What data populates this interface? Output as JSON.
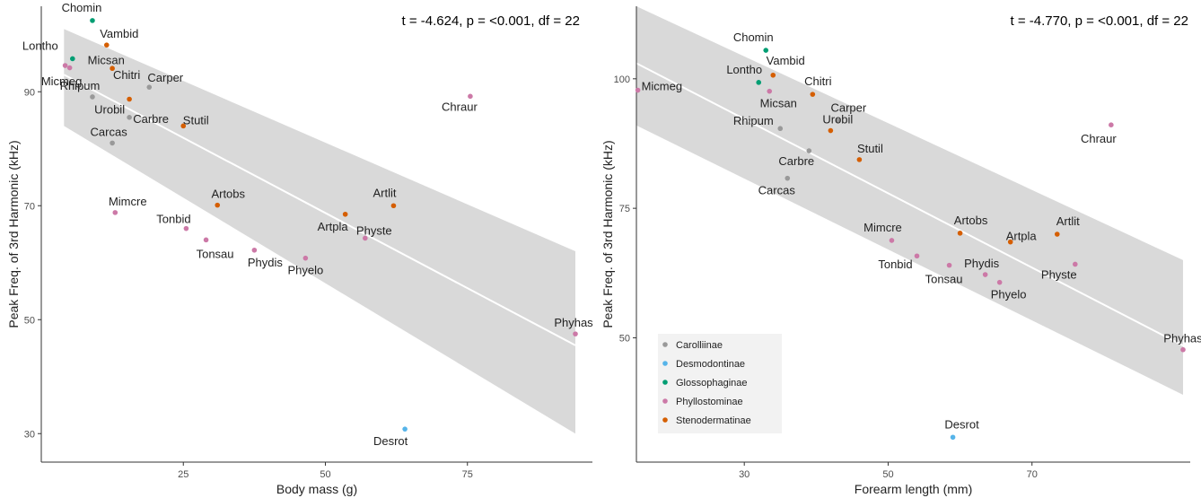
{
  "chart_data": [
    {
      "type": "scatter",
      "annotation": "t = -4.624, p = <0.001, df = 22",
      "xlabel": "Body mass (g)",
      "ylabel": "Peak Freq. of 3rd Harmonic (kHz)",
      "xlim": [
        0,
        97
      ],
      "ylim": [
        25,
        105
      ],
      "xticks": [
        25,
        50,
        75
      ],
      "yticks": [
        30,
        50,
        70,
        90
      ],
      "grid": false,
      "regression": {
        "x0": 4,
        "y0": 93,
        "x1": 94,
        "y1": 45.5,
        "band_lower": [
          84,
          30
        ],
        "band_upper": [
          101,
          62
        ]
      },
      "points": [
        {
          "label": "Chomin",
          "group": "Glossophaginae",
          "x": 9.0,
          "y": 102.5
        },
        {
          "label": "Lontho",
          "group": "Glossophaginae",
          "x": 5.5,
          "y": 95.8
        },
        {
          "label": "Vambid",
          "group": "Stenodermatinae",
          "x": 11.5,
          "y": 98.2
        },
        {
          "label": "Micsan",
          "group": "Phyllostominae",
          "x": 5.0,
          "y": 94.2
        },
        {
          "label": "Micmeg",
          "group": "Phyllostominae",
          "x": 4.2,
          "y": 94.6
        },
        {
          "label": "Chitri",
          "group": "Stenodermatinae",
          "x": 12.5,
          "y": 94.1
        },
        {
          "label": "Carper",
          "group": "Carolliinae",
          "x": 19.0,
          "y": 90.8
        },
        {
          "label": "Rhipum",
          "group": "Carolliinae",
          "x": 9.0,
          "y": 89.1
        },
        {
          "label": "Urobil",
          "group": "Stenodermatinae",
          "x": 15.5,
          "y": 88.7
        },
        {
          "label": "Carbre",
          "group": "Carolliinae",
          "x": 15.5,
          "y": 85.5
        },
        {
          "label": "Stutil",
          "group": "Stenodermatinae",
          "x": 25.0,
          "y": 84.0
        },
        {
          "label": "Carcas",
          "group": "Carolliinae",
          "x": 12.5,
          "y": 81.0
        },
        {
          "label": "Chraur",
          "group": "Phyllostominae",
          "x": 75.5,
          "y": 89.2
        },
        {
          "label": "Mimcre",
          "group": "Phyllostominae",
          "x": 13.0,
          "y": 68.8
        },
        {
          "label": "Artobs",
          "group": "Stenodermatinae",
          "x": 31.0,
          "y": 70.1
        },
        {
          "label": "Tonbid",
          "group": "Phyllostominae",
          "x": 25.5,
          "y": 66.0
        },
        {
          "label": "Tonsau",
          "group": "Phyllostominae",
          "x": 29.0,
          "y": 64.0
        },
        {
          "label": "Phydis",
          "group": "Phyllostominae",
          "x": 37.5,
          "y": 62.2
        },
        {
          "label": "Phyelo",
          "group": "Phyllostominae",
          "x": 46.5,
          "y": 60.8
        },
        {
          "label": "Artpla",
          "group": "Stenodermatinae",
          "x": 53.5,
          "y": 68.5
        },
        {
          "label": "Artlit",
          "group": "Stenodermatinae",
          "x": 62.0,
          "y": 70.0
        },
        {
          "label": "Physte",
          "group": "Phyllostominae",
          "x": 57.0,
          "y": 64.3
        },
        {
          "label": "Phyhas",
          "group": "Phyllostominae",
          "x": 94.0,
          "y": 47.5
        },
        {
          "label": "Desrot",
          "group": "Desmodontinae",
          "x": 64.0,
          "y": 30.8
        }
      ]
    },
    {
      "type": "scatter",
      "annotation": "t = -4.770, p = <0.001, df = 22",
      "xlabel": "Forearm length (mm)",
      "ylabel": "Peak Freq. of 3rd Harmonic (kHz)",
      "xlim": [
        15,
        92
      ],
      "ylim": [
        26,
        114
      ],
      "xticks": [
        30,
        50,
        70
      ],
      "yticks": [
        50,
        75,
        100
      ],
      "grid": false,
      "legend_position": "bottom-left",
      "legend": [
        {
          "group": "Carolliinae",
          "label": "Carolliinae",
          "color": "#999999"
        },
        {
          "group": "Desmodontinae",
          "label": "Desmodontinae",
          "color": "#56B4E9"
        },
        {
          "group": "Glossophaginae",
          "label": "Glossophaginae",
          "color": "#009E73"
        },
        {
          "group": "Phyllostominae",
          "label": "Phyllostominae",
          "color": "#CC79A7"
        },
        {
          "group": "Stenodermatinae",
          "label": "Stenodermatinae",
          "color": "#D55E00"
        }
      ],
      "regression": {
        "x0": 15,
        "y0": 103.0,
        "x1": 91,
        "y1": 48.5,
        "band_lower": [
          91,
          39
        ],
        "band_upper": [
          114,
          65
        ]
      },
      "points": [
        {
          "label": "Chomin",
          "group": "Glossophaginae",
          "x": 33.0,
          "y": 105.5
        },
        {
          "label": "Vambid",
          "group": "Stenodermatinae",
          "x": 34.0,
          "y": 100.7
        },
        {
          "label": "Lontho",
          "group": "Glossophaginae",
          "x": 32.0,
          "y": 99.3
        },
        {
          "label": "Micmeg",
          "group": "Phyllostominae",
          "x": 15.2,
          "y": 97.8
        },
        {
          "label": "Micsan",
          "group": "Phyllostominae",
          "x": 33.5,
          "y": 97.6
        },
        {
          "label": "Chitri",
          "group": "Stenodermatinae",
          "x": 39.5,
          "y": 97.0
        },
        {
          "label": "Carper",
          "group": "Carolliinae",
          "x": 43.0,
          "y": 91.9
        },
        {
          "label": "Rhipum",
          "group": "Carolliinae",
          "x": 35.0,
          "y": 90.4
        },
        {
          "label": "Urobil",
          "group": "Stenodermatinae",
          "x": 42.0,
          "y": 90.0
        },
        {
          "label": "Carbre",
          "group": "Carolliinae",
          "x": 39.0,
          "y": 86.1
        },
        {
          "label": "Stutil",
          "group": "Stenodermatinae",
          "x": 46.0,
          "y": 84.4
        },
        {
          "label": "Carcas",
          "group": "Carolliinae",
          "x": 36.0,
          "y": 80.8
        },
        {
          "label": "Chraur",
          "group": "Phyllostominae",
          "x": 81.0,
          "y": 91.1
        },
        {
          "label": "Mimcre",
          "group": "Phyllostominae",
          "x": 50.5,
          "y": 68.8
        },
        {
          "label": "Artobs",
          "group": "Stenodermatinae",
          "x": 60.0,
          "y": 70.2
        },
        {
          "label": "Artpla",
          "group": "Stenodermatinae",
          "x": 67.0,
          "y": 68.5
        },
        {
          "label": "Artlit",
          "group": "Stenodermatinae",
          "x": 73.5,
          "y": 70.0
        },
        {
          "label": "Tonbid",
          "group": "Phyllostominae",
          "x": 54.0,
          "y": 65.8
        },
        {
          "label": "Tonsau",
          "group": "Phyllostominae",
          "x": 58.5,
          "y": 64.0
        },
        {
          "label": "Phydis",
          "group": "Phyllostominae",
          "x": 63.5,
          "y": 62.2
        },
        {
          "label": "Phyelo",
          "group": "Phyllostominae",
          "x": 65.5,
          "y": 60.7
        },
        {
          "label": "Physte",
          "group": "Phyllostominae",
          "x": 76.0,
          "y": 64.2
        },
        {
          "label": "Phyhas",
          "group": "Phyllostominae",
          "x": 91.0,
          "y": 47.7
        },
        {
          "label": "Desrot",
          "group": "Desmodontinae",
          "x": 59.0,
          "y": 30.8
        }
      ]
    }
  ]
}
